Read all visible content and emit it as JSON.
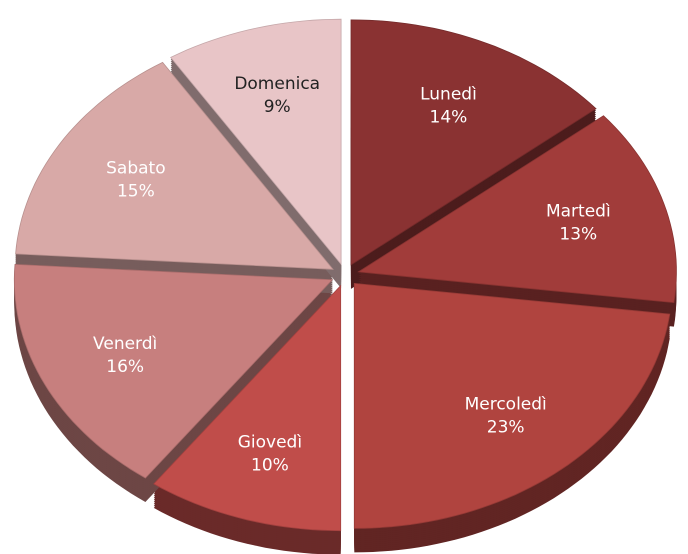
{
  "chart_data": {
    "type": "pie",
    "categories": [
      "Lunedì",
      "Martedì",
      "Mercoledì",
      "Giovedì",
      "Venerdì",
      "Sabato",
      "Domenica"
    ],
    "values": [
      14,
      13,
      23,
      10,
      16,
      15,
      9
    ],
    "value_labels": [
      "14%",
      "13%",
      "23%",
      "10%",
      "16%",
      "15%",
      "9%"
    ],
    "colors": [
      "#8a3232",
      "#a13c3a",
      "#b0443f",
      "#c04d4a",
      "#c77f7e",
      "#d8a9a7",
      "#e8c5c7"
    ]
  }
}
